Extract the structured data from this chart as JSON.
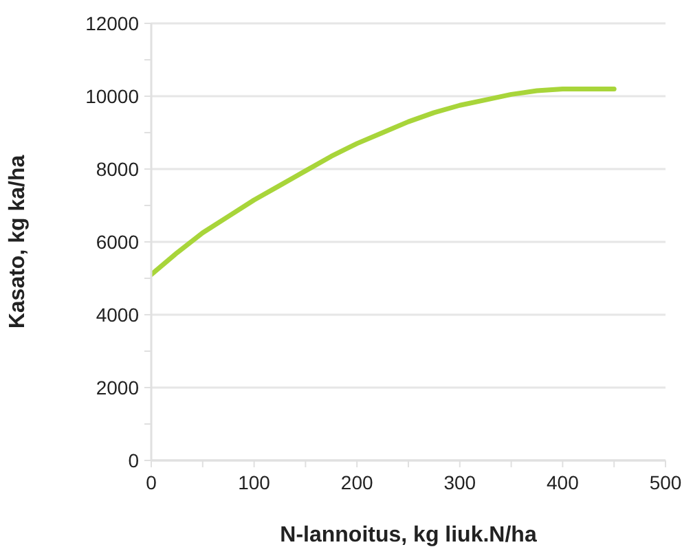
{
  "chart_data": {
    "type": "line",
    "xlabel": "N-lannoitus, kg liuk.N/ha",
    "ylabel": "Kasato, kg ka/ha",
    "x": [
      0,
      25,
      50,
      75,
      100,
      125,
      150,
      175,
      200,
      225,
      250,
      275,
      300,
      325,
      350,
      375,
      400,
      425,
      450
    ],
    "series": [
      {
        "color": "#a8d53a",
        "values": [
          5100,
          5700,
          6250,
          6700,
          7150,
          7550,
          7950,
          8350,
          8700,
          9000,
          9300,
          9550,
          9750,
          9900,
          10050,
          10150,
          10200,
          10200,
          10200
        ]
      }
    ],
    "xlim": [
      0,
      500
    ],
    "xticks": [
      0,
      {
        "value": 50,
        "label": null
      },
      100,
      {
        "value": 150,
        "label": null
      },
      200,
      {
        "value": 250,
        "label": null
      },
      300,
      {
        "value": 350,
        "label": null
      },
      400,
      {
        "value": 450,
        "label": null
      },
      500
    ],
    "ylim": [
      0,
      12000
    ],
    "yticks": [
      0,
      {
        "value": 1000,
        "label": null
      },
      2000,
      {
        "value": 3000,
        "label": null
      },
      4000,
      {
        "value": 5000,
        "label": null
      },
      6000,
      {
        "value": 7000,
        "label": null
      },
      8000,
      {
        "value": 9000,
        "label": null
      },
      10000,
      {
        "value": 11000,
        "label": null
      },
      12000
    ],
    "grid": "y",
    "marker": "none",
    "line_style": "solid"
  }
}
